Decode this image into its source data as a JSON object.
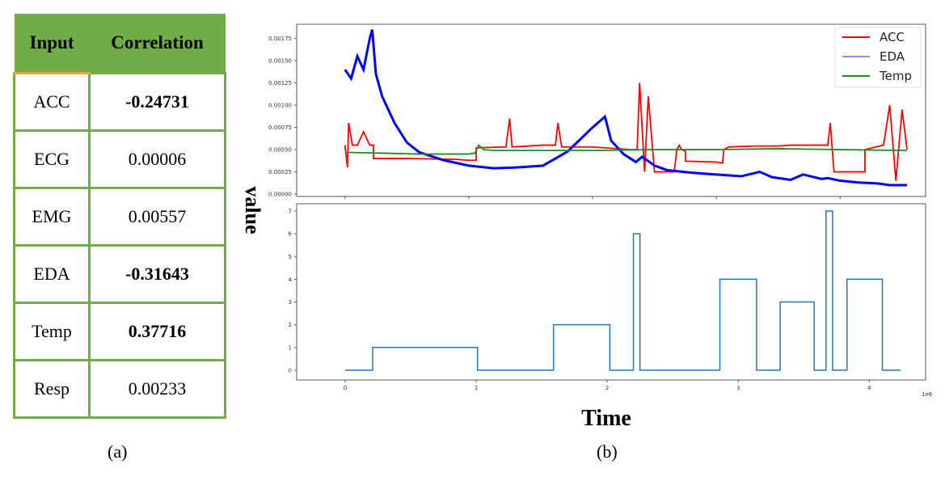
{
  "table": {
    "headers": [
      "Input",
      "Correlation"
    ],
    "rows": [
      {
        "input": "ACC",
        "value": "-0.24731",
        "bold": true
      },
      {
        "input": "ECG",
        "value": "0.00006",
        "bold": false
      },
      {
        "input": "EMG",
        "value": "0.00557",
        "bold": false
      },
      {
        "input": "EDA",
        "value": "-0.31643",
        "bold": true
      },
      {
        "input": "Temp",
        "value": "0.37716",
        "bold": true
      },
      {
        "input": "Resp",
        "value": "0.00233",
        "bold": false
      }
    ],
    "header_color": "#70ad47",
    "accent_color": "#f4a04a",
    "caption": "(a)"
  },
  "figure": {
    "caption": "(b)",
    "ylabel": "value",
    "xlabel": "Time"
  },
  "chart_data": [
    {
      "type": "line",
      "xlim": [
        -0.39,
        4.69
      ],
      "ylim": [
        -2.7e-05,
        0.00191
      ],
      "xticks": [
        0,
        1,
        2,
        3,
        4
      ],
      "yticks": [
        "0.00000",
        "0.00025",
        "0.00050",
        "0.00075",
        "0.00100",
        "0.00125",
        "0.00150",
        "0.00175"
      ],
      "legend": "top-right",
      "series": [
        {
          "name": "ACC",
          "color": "#ff0000",
          "x": [
            0,
            0.02,
            0.03,
            0.06,
            0.1,
            0.15,
            0.2,
            0.23,
            0.23,
            0.5,
            0.9,
            1.0,
            1.06,
            1.06,
            1.3,
            1.33,
            1.35,
            1.6,
            1.7,
            1.72,
            1.75,
            2.0,
            2.3,
            2.36,
            2.38,
            2.42,
            2.45,
            2.5,
            2.5,
            2.66,
            2.68,
            2.7,
            2.72,
            2.75,
            2.75,
            3.0,
            3.05,
            3.06,
            3.1,
            3.3,
            3.5,
            3.6,
            3.9,
            3.92,
            3.95,
            4.2,
            4.2,
            4.35,
            4.4,
            4.45,
            4.5,
            4.54
          ],
          "y": [
            0.00055,
            0.0003,
            0.0008,
            0.00055,
            0.00055,
            0.0007,
            0.00055,
            0.00055,
            0.0004,
            0.0004,
            0.00039,
            0.00038,
            0.00038,
            0.00052,
            0.00053,
            0.00085,
            0.00053,
            0.00055,
            0.00055,
            0.0008,
            0.00053,
            0.00053,
            0.0005,
            0.0005,
            0.00125,
            0.00025,
            0.0011,
            0.00025,
            0.00025,
            0.00025,
            0.0005,
            0.00055,
            0.0005,
            0.00048,
            0.00037,
            0.00036,
            0.00035,
            0.0005,
            0.00053,
            0.00054,
            0.00054,
            0.00055,
            0.00055,
            0.0008,
            0.00025,
            0.00025,
            0.0005,
            0.00055,
            0.001,
            0.00015,
            0.00095,
            0.0005
          ]
        },
        {
          "name": "EDA",
          "color": "#0000ff",
          "x": [
            0,
            0.05,
            0.1,
            0.15,
            0.2,
            0.22,
            0.25,
            0.3,
            0.4,
            0.5,
            0.6,
            0.8,
            1.0,
            1.2,
            1.4,
            1.6,
            1.8,
            2.0,
            2.1,
            2.15,
            2.25,
            2.35,
            2.4,
            2.5,
            2.6,
            2.8,
            3.0,
            3.2,
            3.35,
            3.45,
            3.6,
            3.7,
            3.85,
            3.9,
            4.0,
            4.15,
            4.3,
            4.4,
            4.54
          ],
          "y": [
            0.0014,
            0.0013,
            0.00155,
            0.0014,
            0.00175,
            0.00185,
            0.00135,
            0.0011,
            0.0008,
            0.00058,
            0.00047,
            0.00038,
            0.00032,
            0.00029,
            0.0003,
            0.00032,
            0.00048,
            0.00075,
            0.00087,
            0.0006,
            0.00045,
            0.00036,
            0.00042,
            0.00032,
            0.00027,
            0.00024,
            0.00022,
            0.0002,
            0.00025,
            0.00019,
            0.00016,
            0.00022,
            0.00017,
            0.00018,
            0.00015,
            0.00013,
            0.00012,
            0.0001,
            0.0001
          ]
        },
        {
          "name": "Temp",
          "color": "#228b22",
          "x": [
            0,
            0.3,
            0.6,
            1.0,
            1.05,
            1.08,
            1.12,
            1.2,
            1.5,
            2.0,
            2.5,
            3.0,
            3.5,
            4.0,
            4.54
          ],
          "y": [
            0.00047,
            0.00046,
            0.00045,
            0.00045,
            0.00046,
            0.00055,
            0.0005,
            0.00049,
            0.00049,
            0.00049,
            0.0005,
            0.0005,
            0.00051,
            0.0005,
            0.00049
          ]
        }
      ]
    },
    {
      "type": "line",
      "xlim": [
        -0.37,
        4.43
      ],
      "ylim": [
        -0.43,
        7.32
      ],
      "xticks": [
        0,
        1,
        2,
        3,
        4
      ],
      "yticks": [
        0,
        1,
        2,
        3,
        4,
        5,
        6,
        7
      ],
      "x_offset_label": "1e6",
      "series": [
        {
          "color": "#1f77b4",
          "step": true,
          "x": [
            0,
            0.21,
            1.01,
            1.59,
            2.02,
            2.2,
            2.25,
            2.86,
            3.14,
            3.32,
            3.58,
            3.67,
            3.72,
            3.83,
            4.1,
            4.24
          ],
          "y": [
            0,
            1,
            0,
            2,
            0,
            6,
            0,
            4,
            0,
            3,
            0,
            7,
            0,
            4,
            0,
            0
          ]
        }
      ]
    }
  ]
}
